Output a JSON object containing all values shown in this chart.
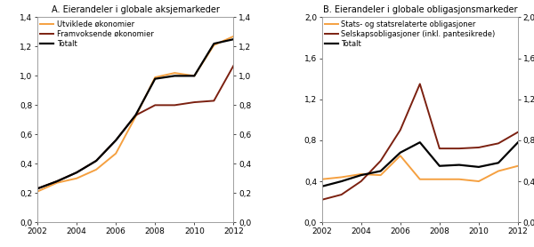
{
  "years": [
    2002,
    2003,
    2004,
    2005,
    2006,
    2007,
    2008,
    2009,
    2010,
    2011,
    2012
  ],
  "panel_a_title": "A. Eierandeler i globale aksjemarkeder",
  "panel_a_developed": [
    0.21,
    0.27,
    0.3,
    0.36,
    0.47,
    0.72,
    0.99,
    1.02,
    1.0,
    1.21,
    1.27
  ],
  "panel_a_emerging": [
    0.23,
    0.28,
    0.34,
    0.42,
    0.56,
    0.73,
    0.8,
    0.8,
    0.82,
    0.83,
    1.07
  ],
  "panel_a_total": [
    0.23,
    0.28,
    0.34,
    0.42,
    0.56,
    0.73,
    0.98,
    1.0,
    1.0,
    1.22,
    1.25
  ],
  "panel_a_ylim": [
    0.0,
    1.4
  ],
  "panel_a_yticks": [
    0.0,
    0.2,
    0.4,
    0.6,
    0.8,
    1.0,
    1.2,
    1.4
  ],
  "panel_a_legend": [
    "Utviklede økonomier",
    "Framvoksende økonomier",
    "Totalt"
  ],
  "panel_b_title": "B. Eierandeler i globale obligasjonsmarkeder",
  "panel_b_govt": [
    0.42,
    0.44,
    0.47,
    0.46,
    0.65,
    0.42,
    0.42,
    0.42,
    0.4,
    0.5,
    0.55
  ],
  "panel_b_corp": [
    0.22,
    0.27,
    0.4,
    0.6,
    0.9,
    1.35,
    0.72,
    0.72,
    0.73,
    0.77,
    0.88
  ],
  "panel_b_total": [
    0.35,
    0.4,
    0.46,
    0.5,
    0.68,
    0.78,
    0.55,
    0.56,
    0.54,
    0.58,
    0.78
  ],
  "panel_b_ylim": [
    0.0,
    2.0
  ],
  "panel_b_yticks": [
    0.0,
    0.4,
    0.8,
    1.2,
    1.6,
    2.0
  ],
  "panel_b_legend": [
    "Stats- og statsrelaterte obligasjoner",
    "Selskapsobligasjoner (inkl. pantesikrede)",
    "Totalt"
  ],
  "color_orange": "#F5A040",
  "color_dark_red": "#7B2010",
  "color_black": "#000000",
  "color_spine": "#999999",
  "xticks": [
    2002,
    2004,
    2006,
    2008,
    2010,
    2012
  ],
  "background": "#FFFFFF",
  "title_fontsize": 7.0,
  "tick_fontsize": 6.5,
  "legend_fontsize": 6.0,
  "linewidth_main": 1.4,
  "linewidth_total": 1.6
}
